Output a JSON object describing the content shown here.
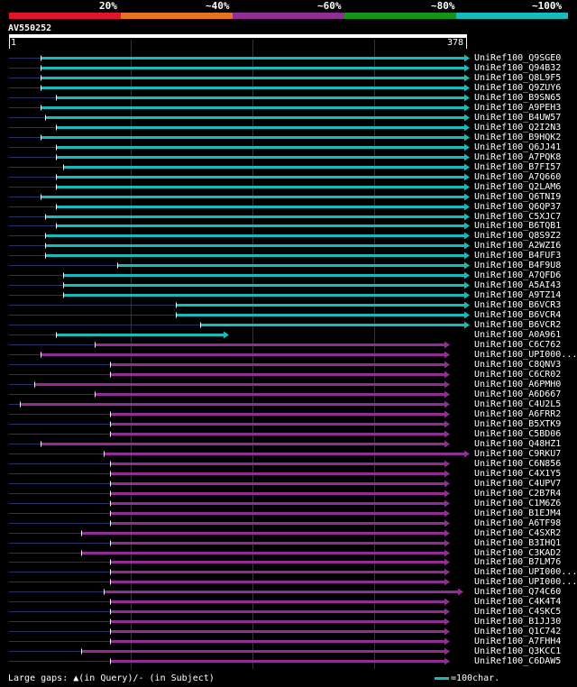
{
  "header": {
    "percent_labels": [
      "20%",
      "~40%",
      "~60%",
      "~80%",
      "~100%"
    ],
    "colors": [
      "#e4132d",
      "#e5721e",
      "#922d95",
      "#159415",
      "#16bcbc"
    ],
    "query_id": "AV550252",
    "ruler_start": "1",
    "ruler_end": "378"
  },
  "hits": [
    {
      "name": "UniRef100_Q9SGE0",
      "color": "#16bcbc",
      "start": 45,
      "end": 515,
      "arrow": true
    },
    {
      "name": "UniRef100_Q94B32",
      "color": "#16bcbc",
      "start": 45,
      "end": 515,
      "arrow": true
    },
    {
      "name": "UniRef100_Q8L9F5",
      "color": "#16bcbc",
      "start": 45,
      "end": 515,
      "arrow": true
    },
    {
      "name": "UniRef100_Q9ZUY6",
      "color": "#16bcbc",
      "start": 45,
      "end": 515,
      "arrow": true
    },
    {
      "name": "UniRef100_B9SN65",
      "color": "#16bcbc",
      "start": 62,
      "end": 515,
      "arrow": true
    },
    {
      "name": "UniRef100_A9PEH3",
      "color": "#16bcbc",
      "start": 45,
      "end": 515,
      "arrow": true
    },
    {
      "name": "UniRef100_B4UW57",
      "color": "#16bcbc",
      "start": 50,
      "end": 515,
      "arrow": true
    },
    {
      "name": "UniRef100_Q2I2N3",
      "color": "#16bcbc",
      "start": 62,
      "end": 515,
      "arrow": true
    },
    {
      "name": "UniRef100_B9HQK2",
      "color": "#16bcbc",
      "start": 45,
      "end": 515,
      "arrow": true
    },
    {
      "name": "UniRef100_Q6JJ41",
      "color": "#16bcbc",
      "start": 62,
      "end": 515,
      "arrow": true
    },
    {
      "name": "UniRef100_A7PQK8",
      "color": "#16bcbc",
      "start": 62,
      "end": 515,
      "arrow": true
    },
    {
      "name": "UniRef100_B7FI57",
      "color": "#16bcbc",
      "start": 70,
      "end": 515,
      "arrow": true
    },
    {
      "name": "UniRef100_A7Q660",
      "color": "#16bcbc",
      "start": 62,
      "end": 515,
      "arrow": true
    },
    {
      "name": "UniRef100_Q2LAM6",
      "color": "#16bcbc",
      "start": 62,
      "end": 515,
      "arrow": true
    },
    {
      "name": "UniRef100_Q6TNI9",
      "color": "#16bcbc",
      "start": 45,
      "end": 515,
      "arrow": true
    },
    {
      "name": "UniRef100_Q6QP37",
      "color": "#16bcbc",
      "start": 62,
      "end": 515,
      "arrow": true
    },
    {
      "name": "UniRef100_C5XJC7",
      "color": "#16bcbc",
      "start": 50,
      "end": 515,
      "arrow": true
    },
    {
      "name": "UniRef100_B6TQB1",
      "color": "#16bcbc",
      "start": 62,
      "end": 515,
      "arrow": true
    },
    {
      "name": "UniRef100_Q8S9Z2",
      "color": "#16bcbc",
      "start": 50,
      "end": 515,
      "arrow": true
    },
    {
      "name": "UniRef100_A2WZI6",
      "color": "#16bcbc",
      "start": 50,
      "end": 515,
      "arrow": true
    },
    {
      "name": "UniRef100_B4FUF3",
      "color": "#16bcbc",
      "start": 50,
      "end": 515,
      "arrow": true
    },
    {
      "name": "UniRef100_B4F9U8",
      "color": "#16bcbc",
      "start": 130,
      "end": 515,
      "arrow": true
    },
    {
      "name": "UniRef100_A7QFD6",
      "color": "#16bcbc",
      "start": 70,
      "end": 515,
      "arrow": true
    },
    {
      "name": "UniRef100_A5AI43",
      "color": "#16bcbc",
      "start": 70,
      "end": 515,
      "arrow": true
    },
    {
      "name": "UniRef100_A9TZ14",
      "color": "#16bcbc",
      "start": 70,
      "end": 515,
      "arrow": true
    },
    {
      "name": "UniRef100_B6VCR3",
      "color": "#16bcbc",
      "start": 195,
      "end": 515,
      "arrow": true
    },
    {
      "name": "UniRef100_B6VCR4",
      "color": "#16bcbc",
      "start": 195,
      "end": 515,
      "arrow": true
    },
    {
      "name": "UniRef100_B6VCR2",
      "color": "#16bcbc",
      "start": 222,
      "end": 515,
      "arrow": true
    },
    {
      "name": "UniRef100_A0A961",
      "color": "#16bcbc",
      "start": 62,
      "end": 248,
      "arrow": true
    },
    {
      "name": "UniRef100_C6C762",
      "color": "#922d95",
      "start": 105,
      "end": 493,
      "arrow": true
    },
    {
      "name": "UniRef100_UPI000...",
      "color": "#922d95",
      "start": 45,
      "end": 493,
      "arrow": true
    },
    {
      "name": "UniRef100_C8QNV3",
      "color": "#922d95",
      "start": 122,
      "end": 493,
      "arrow": true
    },
    {
      "name": "UniRef100_C6CR02",
      "color": "#922d95",
      "start": 122,
      "end": 493,
      "arrow": true
    },
    {
      "name": "UniRef100_A6PMH0",
      "color": "#922d95",
      "start": 38,
      "end": 493,
      "arrow": true
    },
    {
      "name": "UniRef100_A6D667",
      "color": "#922d95",
      "start": 105,
      "end": 493,
      "arrow": true
    },
    {
      "name": "UniRef100_C4U2L5",
      "color": "#922d95",
      "start": 22,
      "end": 493,
      "arrow": true
    },
    {
      "name": "UniRef100_A6FRR2",
      "color": "#922d95",
      "start": 122,
      "end": 493,
      "arrow": true
    },
    {
      "name": "UniRef100_B5XTK9",
      "color": "#922d95",
      "start": 122,
      "end": 493,
      "arrow": true
    },
    {
      "name": "UniRef100_C5BD06",
      "color": "#922d95",
      "start": 122,
      "end": 493,
      "arrow": true
    },
    {
      "name": "UniRef100_Q48HZ1",
      "color": "#922d95",
      "start": 45,
      "end": 493,
      "arrow": true
    },
    {
      "name": "UniRef100_C9RKU7",
      "color": "#922d95",
      "start": 115,
      "end": 515,
      "arrow": true
    },
    {
      "name": "UniRef100_C6N856",
      "color": "#922d95",
      "start": 122,
      "end": 493,
      "arrow": true
    },
    {
      "name": "UniRef100_C4X1Y5",
      "color": "#922d95",
      "start": 122,
      "end": 493,
      "arrow": true
    },
    {
      "name": "UniRef100_C4UPV7",
      "color": "#922d95",
      "start": 122,
      "end": 493,
      "arrow": true
    },
    {
      "name": "UniRef100_C2B7R4",
      "color": "#922d95",
      "start": 122,
      "end": 493,
      "arrow": true
    },
    {
      "name": "UniRef100_C1M6Z6",
      "color": "#922d95",
      "start": 122,
      "end": 493,
      "arrow": true
    },
    {
      "name": "UniRef100_B1EJM4",
      "color": "#922d95",
      "start": 122,
      "end": 493,
      "arrow": true
    },
    {
      "name": "UniRef100_A6TF98",
      "color": "#922d95",
      "start": 122,
      "end": 493,
      "arrow": true
    },
    {
      "name": "UniRef100_C4SXR2",
      "color": "#922d95",
      "start": 90,
      "end": 493,
      "arrow": true
    },
    {
      "name": "UniRef100_B3IHQ1",
      "color": "#922d95",
      "start": 122,
      "end": 493,
      "arrow": true
    },
    {
      "name": "UniRef100_C3KAD2",
      "color": "#922d95",
      "start": 90,
      "end": 493,
      "arrow": true
    },
    {
      "name": "UniRef100_B7LM76",
      "color": "#922d95",
      "start": 122,
      "end": 493,
      "arrow": true
    },
    {
      "name": "UniRef100_UPI000...",
      "color": "#922d95",
      "start": 122,
      "end": 493,
      "arrow": true
    },
    {
      "name": "UniRef100_UPI000...",
      "color": "#922d95",
      "start": 122,
      "end": 493,
      "arrow": true
    },
    {
      "name": "UniRef100_Q74C60",
      "color": "#922d95",
      "start": 115,
      "end": 508,
      "arrow": true
    },
    {
      "name": "UniRef100_C4K4T4",
      "color": "#922d95",
      "start": 122,
      "end": 493,
      "arrow": true
    },
    {
      "name": "UniRef100_C4SKC5",
      "color": "#922d95",
      "start": 122,
      "end": 493,
      "arrow": true
    },
    {
      "name": "UniRef100_B1JJ30",
      "color": "#922d95",
      "start": 122,
      "end": 493,
      "arrow": true
    },
    {
      "name": "UniRef100_Q1C742",
      "color": "#922d95",
      "start": 122,
      "end": 493,
      "arrow": true
    },
    {
      "name": "UniRef100_A7FHH4",
      "color": "#922d95",
      "start": 122,
      "end": 493,
      "arrow": true
    },
    {
      "name": "UniRef100_Q3KCC1",
      "color": "#922d95",
      "start": 90,
      "end": 493,
      "arrow": true
    },
    {
      "name": "UniRef100_C6DAW5",
      "color": "#922d95",
      "start": 122,
      "end": 493,
      "arrow": true
    }
  ],
  "footer": {
    "legend_text": "Large gaps: ▲(in Query)/- (in Subject)",
    "scale_text": "=100char."
  }
}
